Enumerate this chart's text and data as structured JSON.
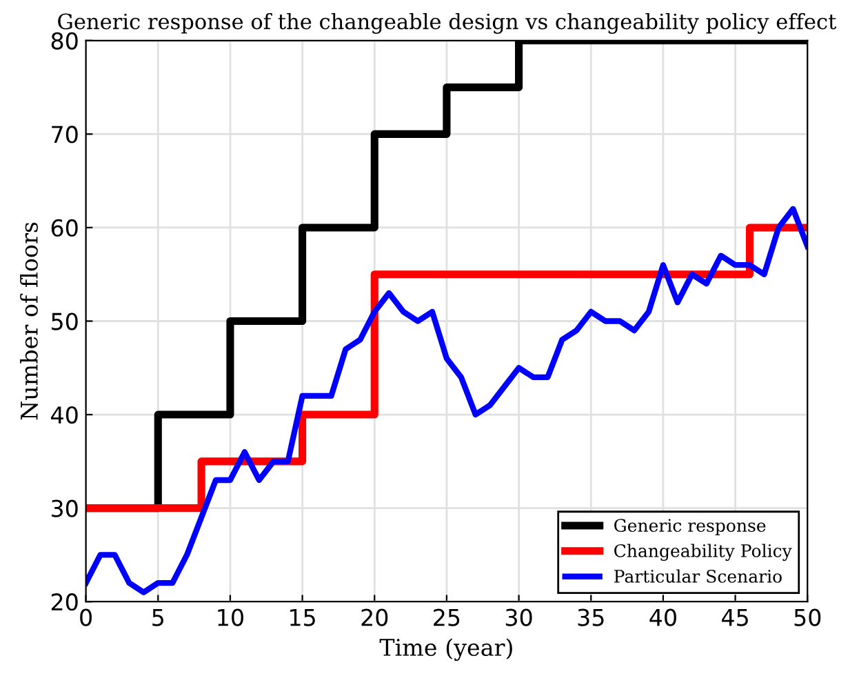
{
  "chart_data": {
    "type": "line",
    "title": "Generic response of the changeable design vs changeability policy effect",
    "xlabel": "Time (year)",
    "ylabel": "Number of floors",
    "xlim": [
      0,
      50
    ],
    "ylim": [
      20,
      80
    ],
    "xticks": [
      0,
      5,
      10,
      15,
      20,
      25,
      30,
      35,
      40,
      45,
      50
    ],
    "yticks": [
      20,
      30,
      40,
      50,
      60,
      70,
      80
    ],
    "grid": true,
    "legend": "bottom right",
    "marker": "none",
    "line_style": "solid",
    "series": [
      {
        "name": "Generic response",
        "type": "step",
        "color": "#000000",
        "x": [
          0,
          5,
          10,
          15,
          20,
          25,
          30,
          50
        ],
        "values": [
          30,
          40,
          50,
          60,
          70,
          75,
          80,
          80
        ]
      },
      {
        "name": "Changeability Policy",
        "type": "step",
        "color": "#ff0000",
        "x": [
          0,
          8,
          15,
          20,
          46,
          50
        ],
        "values": [
          30,
          35,
          40,
          55,
          60,
          60
        ]
      },
      {
        "name": "Particular Scenario",
        "color": "#0000ff",
        "x": [
          0,
          1,
          2,
          3,
          4,
          5,
          6,
          7,
          8,
          9,
          10,
          11,
          12,
          13,
          14,
          15,
          16,
          17,
          18,
          19,
          20,
          21,
          22,
          23,
          24,
          25,
          26,
          27,
          28,
          29,
          30,
          31,
          32,
          33,
          34,
          35,
          36,
          37,
          38,
          39,
          40,
          41,
          42,
          43,
          44,
          45,
          46,
          47,
          48,
          49,
          50
        ],
        "values": [
          22,
          25,
          25,
          22,
          21,
          22,
          22,
          25,
          29,
          33,
          33,
          36,
          33,
          35,
          35,
          42,
          42,
          42,
          47,
          48,
          51,
          53,
          51,
          50,
          51,
          46,
          44,
          40,
          41,
          43,
          45,
          44,
          44,
          48,
          49,
          51,
          50,
          50,
          49,
          51,
          56,
          52,
          55,
          54,
          57,
          56,
          56,
          55,
          60,
          62,
          58
        ]
      }
    ]
  }
}
